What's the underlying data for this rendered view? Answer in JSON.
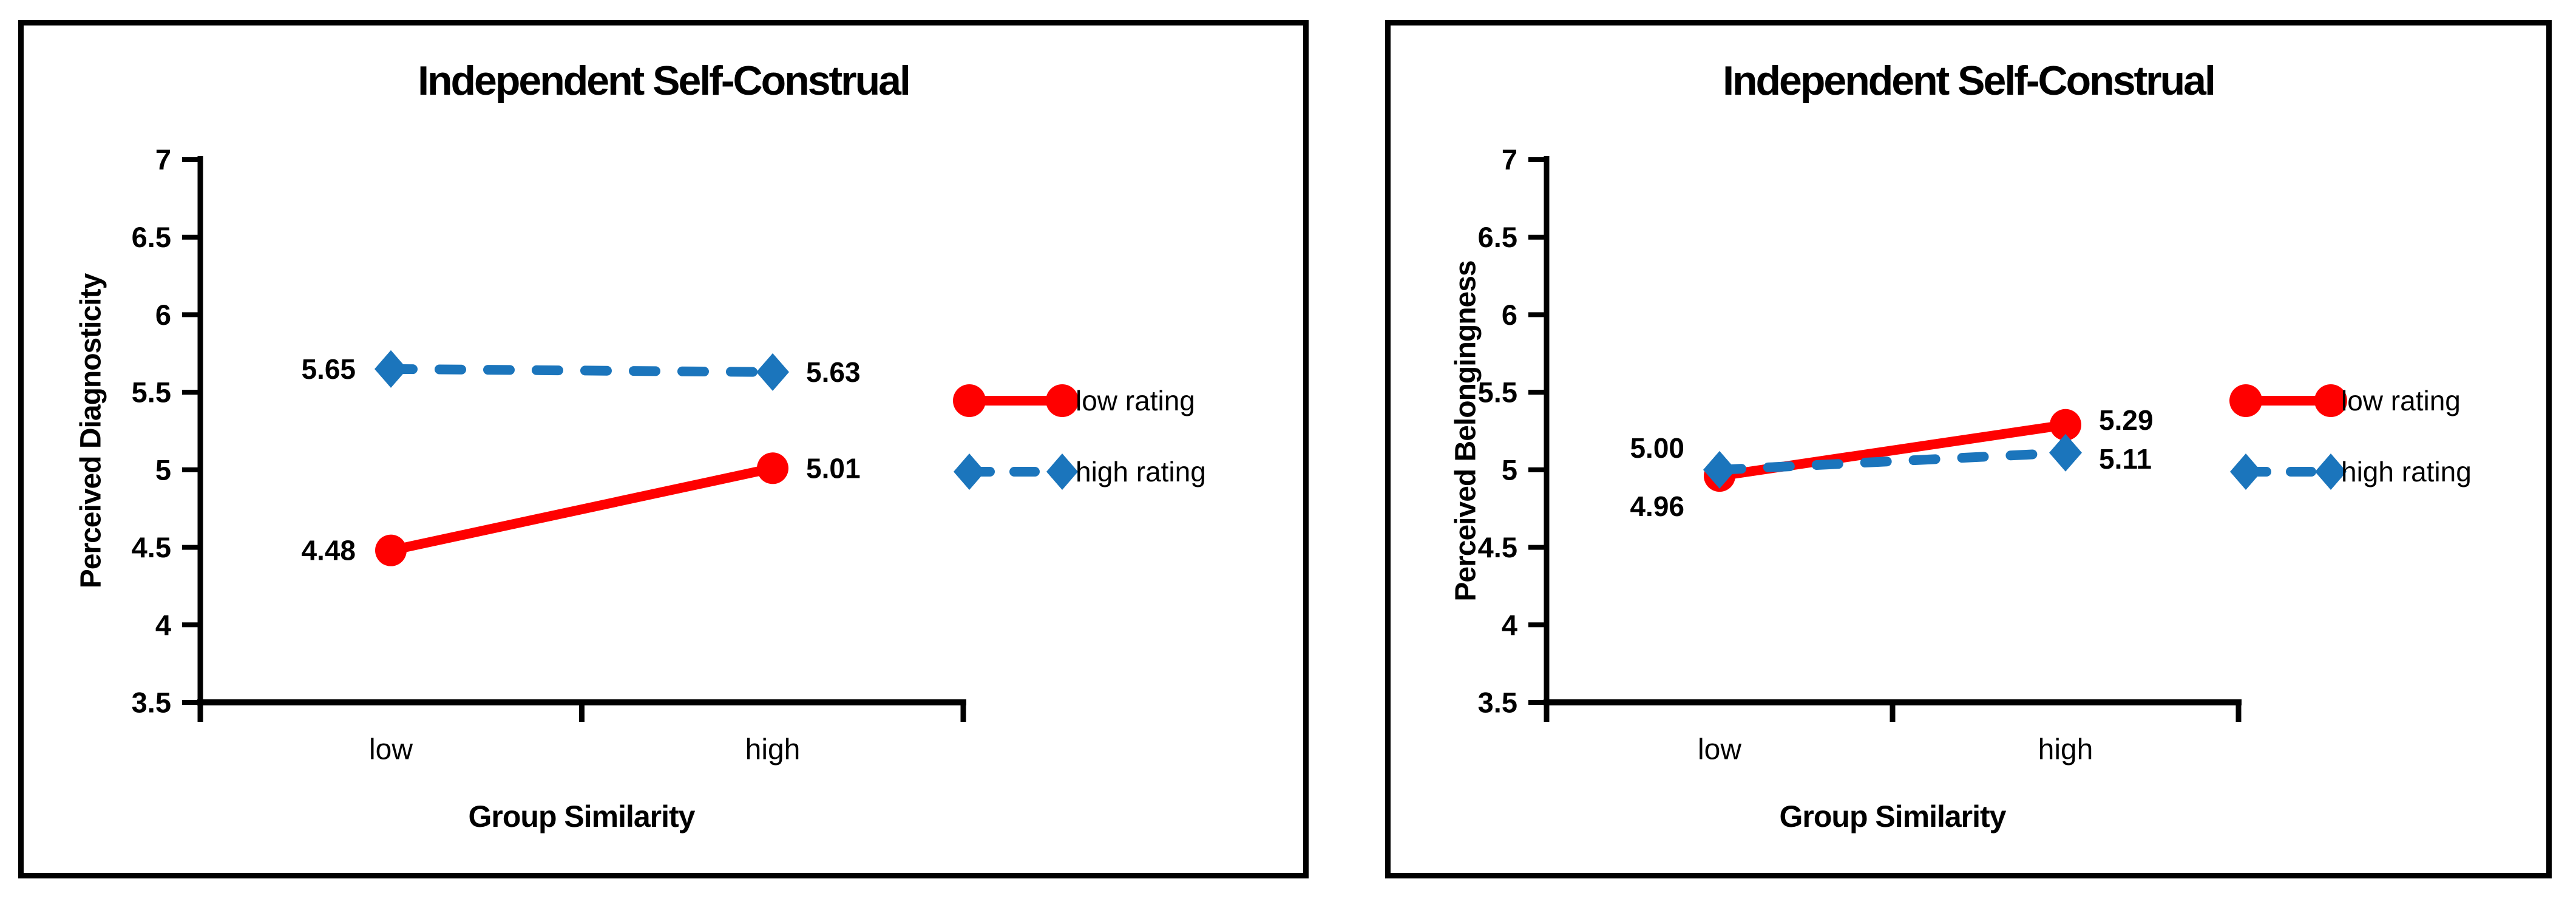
{
  "figure": {
    "background": "#ffffff",
    "panel_border_color": "#000000",
    "text_color": "#000000"
  },
  "chart_data": [
    {
      "type": "line",
      "title": "Independent Self-Construal",
      "ylabel": "Perceived Diagnosticity",
      "xlabel": "Group Similarity",
      "categories": [
        "low",
        "high"
      ],
      "ylim": [
        3.5,
        7
      ],
      "ytick_labels": [
        "3.5",
        "4",
        "4.5",
        "5",
        "5.5",
        "6",
        "6.5",
        "7"
      ],
      "grid": false,
      "legend_position": "right",
      "series": [
        {
          "name": "low rating",
          "color": "#ff0000",
          "line_style": "solid",
          "marker": "circle",
          "values": [
            4.48,
            5.01
          ],
          "point_labels": [
            {
              "text": "4.48",
              "side": "left",
              "dy": 0
            },
            {
              "text": "5.01",
              "side": "right",
              "dy": 0
            }
          ]
        },
        {
          "name": "high rating",
          "color": "#1b75bc",
          "line_style": "dashed",
          "marker": "diamond",
          "values": [
            5.65,
            5.63
          ],
          "point_labels": [
            {
              "text": "5.65",
              "side": "left",
              "dy": 0
            },
            {
              "text": "5.63",
              "side": "right",
              "dy": 0
            }
          ]
        }
      ]
    },
    {
      "type": "line",
      "title": "Independent Self-Construal",
      "ylabel": "Perceived Belongingness",
      "xlabel": "Group Similarity",
      "categories": [
        "low",
        "high"
      ],
      "ylim": [
        3.5,
        7
      ],
      "ytick_labels": [
        "3.5",
        "4",
        "4.5",
        "5",
        "5.5",
        "6",
        "6.5",
        "7"
      ],
      "grid": false,
      "legend_position": "right",
      "series": [
        {
          "name": "low rating",
          "color": "#ff0000",
          "line_style": "solid",
          "marker": "circle",
          "values": [
            4.96,
            5.29
          ],
          "point_labels": [
            {
              "text": "4.96",
              "side": "left",
              "dy": 50
            },
            {
              "text": "5.29",
              "side": "right",
              "dy": -8
            }
          ]
        },
        {
          "name": "high rating",
          "color": "#1b75bc",
          "line_style": "dashed",
          "marker": "diamond",
          "values": [
            5.0,
            5.11
          ],
          "point_labels": [
            {
              "text": "5.00",
              "side": "left",
              "dy": -36
            },
            {
              "text": "5.11",
              "side": "right",
              "dy": 10
            }
          ]
        }
      ]
    }
  ]
}
